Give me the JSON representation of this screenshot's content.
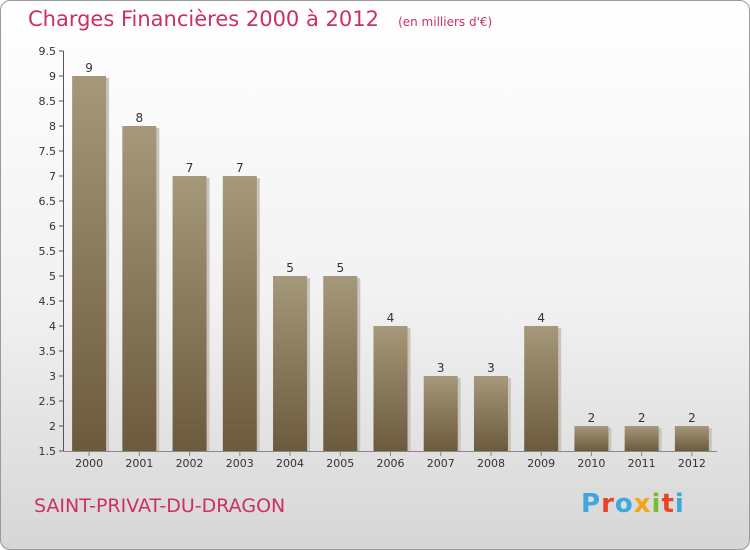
{
  "header": {
    "title": "Charges Financières 2000 à 2012",
    "unit": "(en milliers d'€)"
  },
  "footer": {
    "commune": "SAINT-PRIVAT-DU-DRAGON",
    "logo": "Proxiti"
  },
  "colors": {
    "title": "#cc2f68",
    "bar_light": "#a6987a",
    "bar_dark": "#6c5a3e",
    "logo_letters": [
      "#3ea8de",
      "#e8442a",
      "#3ea8de",
      "#f2a515",
      "#7dbb2c",
      "#e8442a",
      "#3ea8de"
    ]
  },
  "chart_data": {
    "type": "bar",
    "title": "Charges Financières 2000 à 2012",
    "subtitle": "(en milliers d'€)",
    "xlabel": "",
    "ylabel": "",
    "categories": [
      "2000",
      "2001",
      "2002",
      "2003",
      "2004",
      "2005",
      "2006",
      "2007",
      "2008",
      "2009",
      "2010",
      "2011",
      "2012"
    ],
    "values": [
      9,
      8,
      7,
      7,
      5,
      5,
      4,
      3,
      3,
      4,
      2,
      2,
      2
    ],
    "data_labels": [
      "9",
      "8",
      "7",
      "7",
      "5",
      "5",
      "4",
      "3",
      "3",
      "4",
      "2",
      "2",
      "2"
    ],
    "ylim": [
      1.5,
      9.5
    ],
    "yticks": [
      1.5,
      2,
      2.5,
      3,
      3.5,
      4,
      4.5,
      5,
      5.5,
      6,
      6.5,
      7,
      7.5,
      8,
      8.5,
      9,
      9.5
    ],
    "ytick_labels": [
      "1.5",
      "2",
      "2.5",
      "3",
      "3.5",
      "4",
      "4.5",
      "5",
      "5.5",
      "6",
      "6.5",
      "7",
      "7.5",
      "8",
      "8.5",
      "9",
      "9.5"
    ],
    "grid": false,
    "legend": "none"
  }
}
